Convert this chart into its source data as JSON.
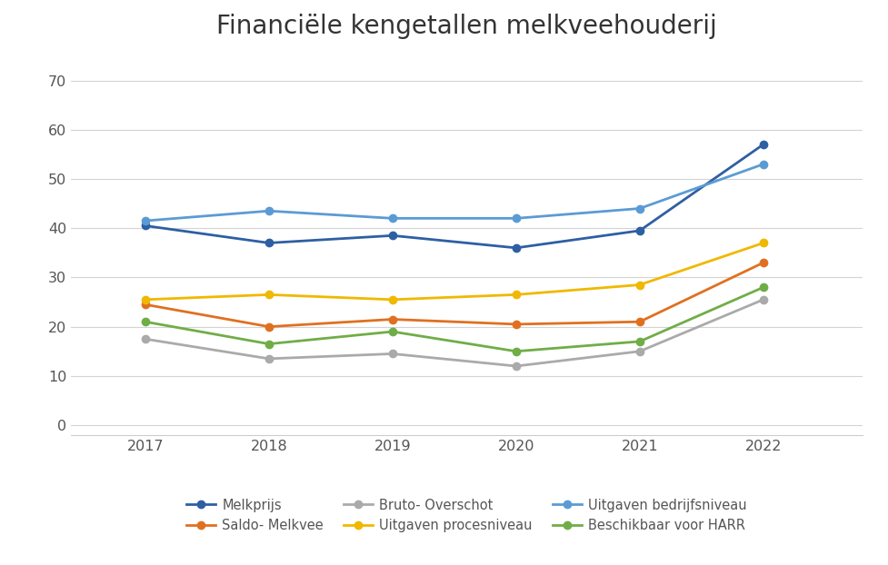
{
  "title": "Financiële kengetallen melkveehouderij",
  "years": [
    2017,
    2018,
    2019,
    2020,
    2021,
    2022
  ],
  "series": [
    {
      "label": "Melkprijs",
      "values": [
        40.5,
        37.0,
        38.5,
        36.0,
        39.5,
        57.0
      ],
      "color": "#2E5FA3",
      "marker": "o",
      "linewidth": 2.0
    },
    {
      "label": "Saldo- Melkvee",
      "values": [
        24.5,
        20.0,
        21.5,
        20.5,
        21.0,
        33.0
      ],
      "color": "#E07020",
      "marker": "o",
      "linewidth": 2.0
    },
    {
      "label": "Bruto- Overschot",
      "values": [
        17.5,
        13.5,
        14.5,
        12.0,
        15.0,
        25.5
      ],
      "color": "#AAAAAA",
      "marker": "o",
      "linewidth": 2.0
    },
    {
      "label": "Uitgaven procesniveau",
      "values": [
        25.5,
        26.5,
        25.5,
        26.5,
        28.5,
        37.0
      ],
      "color": "#F0B800",
      "marker": "o",
      "linewidth": 2.0
    },
    {
      "label": "Uitgaven bedrijfsniveau",
      "values": [
        41.5,
        43.5,
        42.0,
        42.0,
        44.0,
        53.0
      ],
      "color": "#5B9BD5",
      "marker": "o",
      "linewidth": 2.0
    },
    {
      "label": "Beschikbaar voor HARR",
      "values": [
        21.0,
        16.5,
        19.0,
        15.0,
        17.0,
        28.0
      ],
      "color": "#70AD47",
      "marker": "o",
      "linewidth": 2.0
    }
  ],
  "legend_order": [
    0,
    1,
    2,
    3,
    4,
    5
  ],
  "ylim": [
    -2,
    76
  ],
  "yticks": [
    0,
    10,
    20,
    30,
    40,
    50,
    60,
    70
  ],
  "xlim_left": 2016.4,
  "xlim_right": 2022.8,
  "background_color": "#FFFFFF",
  "grid_color": "#D3D3D3",
  "title_fontsize": 20,
  "legend_fontsize": 10.5,
  "tick_fontsize": 11.5
}
